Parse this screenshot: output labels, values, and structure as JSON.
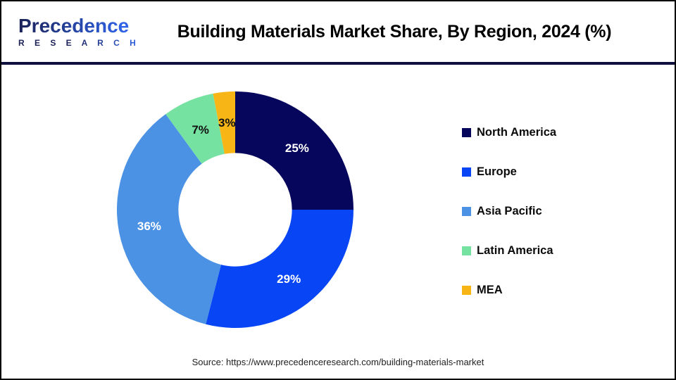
{
  "header": {
    "logo": {
      "brand": "Precedence",
      "subtitle": "R E S E A R C H"
    },
    "title": "Building Materials Market Share, By Region, 2024 (%)"
  },
  "chart_data": {
    "type": "pie",
    "subtype": "donut",
    "title": "Building Materials Market Share, By Region, 2024 (%)",
    "unit": "%",
    "start_angle_deg": 0,
    "direction": "clockwise",
    "donut_hole_ratio": 0.48,
    "label_radius_ratio": 0.74,
    "legend_position": "right",
    "categories": [
      "North America",
      "Europe",
      "Asia Pacific",
      "Latin America",
      "MEA"
    ],
    "values": [
      25,
      29,
      36,
      7,
      3
    ],
    "series": [
      {
        "name": "North America",
        "value": 25,
        "label": "25%",
        "color": "#06075C",
        "label_color": "#FFFFFF"
      },
      {
        "name": "Europe",
        "value": 29,
        "label": "29%",
        "color": "#0846F5",
        "label_color": "#FFFFFF"
      },
      {
        "name": "Asia Pacific",
        "value": 36,
        "label": "36%",
        "color": "#4B92E5",
        "label_color": "#FFFFFF"
      },
      {
        "name": "Latin America",
        "value": 7,
        "label": "7%",
        "color": "#76E2A1",
        "label_color": "#111111"
      },
      {
        "name": "MEA",
        "value": 3,
        "label": "3%",
        "color": "#F7B616",
        "label_color": "#111111"
      }
    ]
  },
  "footer": {
    "source": "Source: https://www.precedenceresearch.com/building-materials-market"
  },
  "colors": {
    "page_border": "#000000",
    "header_divider": "#10103E",
    "title_text": "#000000",
    "logo_dark": "#1B2257",
    "logo_blue": "#2F62E6",
    "background": "#FFFFFF"
  }
}
